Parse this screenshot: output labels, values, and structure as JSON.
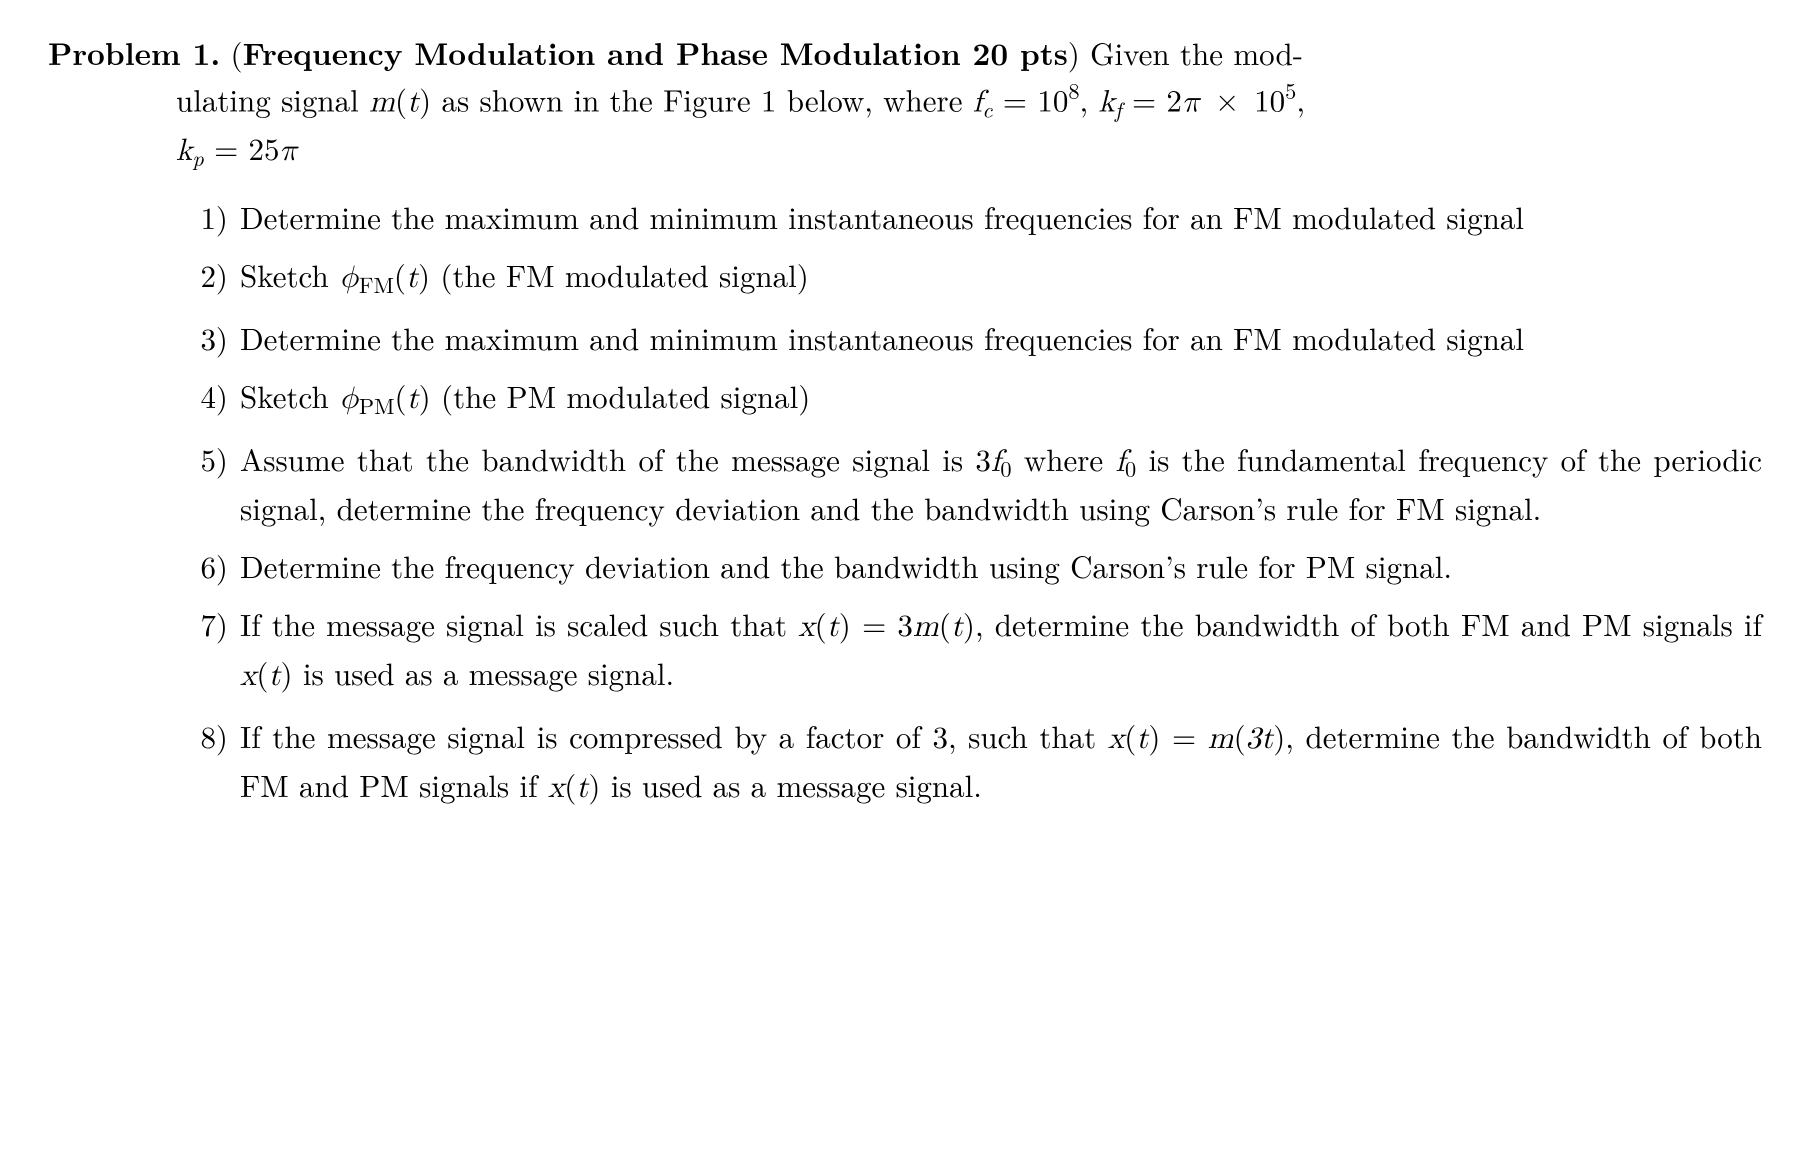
{
  "header": {
    "label": "Problem 1.",
    "title_open": "(",
    "title": "Frequency Modulation and Phase Modulation 20 pts",
    "title_close": ")",
    "intro_part1": " Given the mod-",
    "intro_line2a": "ulating signal ",
    "m_of_t": "m",
    "m_paren_open": "(",
    "m_arg": "t",
    "m_paren_close": ")",
    "intro_line2b": " as shown in the Figure 1 below, where ",
    "fc_sym": "f",
    "fc_sub": "c",
    "eq1": " = 10",
    "fc_pow": "8",
    "comma1": ", ",
    "kf_sym": "k",
    "kf_sub": "f",
    "eq2": " = 2",
    "pi1": "π",
    "times": " × ",
    "ten": "10",
    "kf_pow": "5",
    "comma2": ",",
    "kp_sym": "k",
    "kp_sub": "p",
    "eq3": " = 25",
    "pi2": "π"
  },
  "items": {
    "i1": {
      "num": "1)",
      "text": "Determine the maximum and minimum instantaneous frequencies for an FM modulated signal"
    },
    "i2": {
      "num": "2)",
      "pre": "Sketch ",
      "phi": "ϕ",
      "sub": "FM",
      "arg_open": "(",
      "arg": "t",
      "arg_close": ")",
      "post": " (the FM modulated signal)"
    },
    "i3": {
      "num": "3)",
      "text": "Determine the maximum and minimum instantaneous frequencies for an FM modulated signal"
    },
    "i4": {
      "num": "4)",
      "pre": "Sketch ",
      "phi": "ϕ",
      "sub": "PM",
      "arg_open": "(",
      "arg": "t",
      "arg_close": ")",
      "post": " (the PM modulated signal)"
    },
    "i5": {
      "num": "5)",
      "pre": "Assume that the bandwidth of the message signal is 3",
      "f": "f",
      "fsub": "0",
      "mid": " where ",
      "f2": "f",
      "f2sub": "0",
      "post": " is the fundamental frequency of the periodic signal, determine the frequency deviation and the bandwidth using Carson’s rule for FM signal."
    },
    "i6": {
      "num": "6)",
      "text": "Determine the frequency deviation and the bandwidth using Carson’s rule for PM signal."
    },
    "i7": {
      "num": "7)",
      "pre": "If the message signal is scaled such that ",
      "x": "x",
      "x_open": "(",
      "x_arg": "t",
      "x_close": ")",
      "eq": " = 3",
      "m": "m",
      "m_open": "(",
      "m_arg": "t",
      "m_close": ")",
      "mid": ", determine the bandwidth of both FM and PM signals if ",
      "x2": "x",
      "x2_open": "(",
      "x2_arg": "t",
      "x2_close": ")",
      "post": " is used as a message signal."
    },
    "i8": {
      "num": "8)",
      "pre": "If the message signal is compressed by a factor of 3, such that ",
      "x": "x",
      "x_open": "(",
      "x_arg": "t",
      "x_close": ")",
      "eq": " = ",
      "m": "m",
      "m_open": "(",
      "m_arg": "3t",
      "m_close": ")",
      "mid": ", determine the bandwidth of both FM and PM signals if ",
      "x2": "x",
      "x2_open": "(",
      "x2_arg": "t",
      "x2_close": ")",
      "post": " is used as a message signal."
    }
  }
}
